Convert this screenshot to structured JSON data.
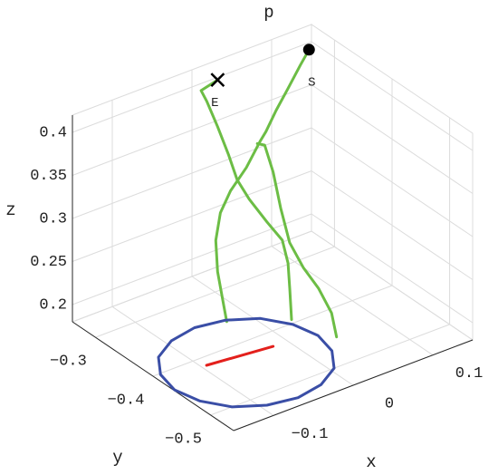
{
  "chart_data": {
    "type": "line3d",
    "title": "p",
    "xlabel": "x",
    "ylabel": "y",
    "zlabel": "z",
    "xlim": [
      -0.15,
      0.15
    ],
    "ylim": [
      -0.54,
      -0.26
    ],
    "zlim": [
      0.18,
      0.42
    ],
    "xticks": [
      {
        "value": -0.1,
        "label": "−0.1"
      },
      0,
      0.1
    ],
    "yticks": [
      {
        "value": -0.5,
        "label": "−0.5"
      },
      {
        "value": -0.4,
        "label": "−0.4"
      },
      {
        "value": -0.3,
        "label": "−0.3"
      }
    ],
    "zticks": [
      0.2,
      0.25,
      0.3,
      0.35,
      0.4
    ],
    "grid": true,
    "annotations": [
      "S",
      "E"
    ],
    "series": [
      {
        "color": "#6cbd45",
        "x": [
          0.118,
          0.1,
          0.077,
          0.055,
          0.035,
          0.021,
          -0.004,
          -0.031,
          -0.051,
          -0.064,
          -0.069,
          -0.07,
          -0.072,
          null,
          0.037,
          0.038,
          0.029,
          0.017,
          0.007,
          0.003,
          0.008,
          0.019,
          0.017,
          null,
          -0.005,
          0.0,
          0.005,
          0.005,
          -0.007,
          -0.022,
          -0.03,
          -0.012,
          -0.004,
          -0.003,
          -0.003,
          0.025
        ],
        "y": [
          -0.3,
          -0.31,
          -0.32,
          -0.33,
          -0.34,
          -0.35,
          -0.36,
          -0.37,
          -0.38,
          -0.39,
          -0.4,
          -0.41,
          -0.42,
          null,
          -0.46,
          -0.45,
          -0.44,
          -0.43,
          -0.42,
          -0.41,
          -0.39,
          -0.36,
          -0.35,
          null,
          -0.44,
          -0.43,
          -0.42,
          -0.41,
          -0.4,
          -0.39,
          -0.38,
          -0.34,
          -0.31,
          -0.29,
          -0.28,
          -0.27
        ],
        "z": [
          0.42,
          0.413,
          0.398,
          0.385,
          0.372,
          0.371,
          0.353,
          0.34,
          0.326,
          0.303,
          0.273,
          0.246,
          0.225,
          null,
          0.187,
          0.21,
          0.237,
          0.261,
          0.289,
          0.326,
          0.357,
          0.371,
          0.369,
          null,
          0.213,
          0.241,
          0.266,
          0.288,
          0.309,
          0.336,
          0.357,
          0.362,
          0.378,
          0.398,
          0.406,
          0.404
        ]
      },
      {
        "color": "#3a4ea6",
        "x": [
          0.031,
          0.024,
          0.005,
          -0.025,
          -0.059,
          -0.093,
          -0.123,
          -0.142,
          -0.149,
          -0.142,
          -0.123,
          -0.093,
          -0.059,
          -0.025,
          0.005,
          0.024
        ],
        "y": [
          -0.436,
          -0.402,
          -0.372,
          -0.353,
          -0.346,
          -0.353,
          -0.372,
          -0.402,
          -0.436,
          -0.47,
          -0.5,
          -0.519,
          -0.526,
          -0.519,
          -0.5,
          -0.47
        ],
        "z": [
          0.18,
          0.18,
          0.18,
          0.18,
          0.18,
          0.18,
          0.18,
          0.18,
          0.18,
          0.18,
          0.18,
          0.18,
          0.18,
          0.18,
          0.18,
          0.18
        ]
      },
      {
        "color": "#e3201c",
        "x": [
          -0.094,
          -0.018
        ],
        "y": [
          -0.4155,
          -0.426
        ],
        "z": [
          0.18,
          0.18
        ]
      }
    ]
  }
}
